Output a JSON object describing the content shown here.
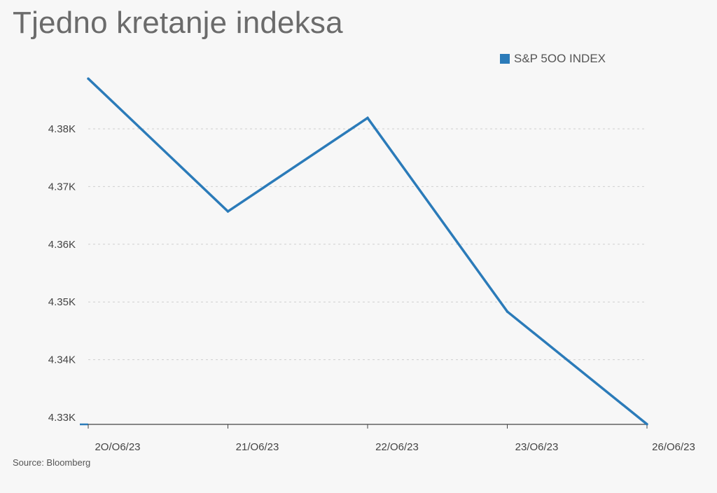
{
  "chart_data": {
    "type": "line",
    "title": "Tjedno kretanje indeksa",
    "source": "Source: Bloomberg",
    "x": [
      "20/06/23",
      "21/06/23",
      "22/06/23",
      "23/06/23",
      "26/06/23"
    ],
    "x_tick_labels": [
      "2O/O6/23",
      "21/O6/23",
      "22/O6/23",
      "23/O6/23",
      "26/O6/23"
    ],
    "series": [
      {
        "name": "S&P 5OO INDEX",
        "values": [
          4388.71,
          4365.69,
          4381.89,
          4348.33,
          4328.82
        ],
        "color": "#2b7bb9"
      }
    ],
    "y_ticks": [
      4330,
      4340,
      4350,
      4360,
      4370,
      4380
    ],
    "y_tick_labels": [
      "4.33K",
      "4.34K",
      "4.35K",
      "4.36K",
      "4.37K",
      "4.38K"
    ],
    "ylim": [
      4330,
      4380
    ],
    "grid": true,
    "legend_position": "top-right",
    "xlabel": "",
    "ylabel": ""
  }
}
